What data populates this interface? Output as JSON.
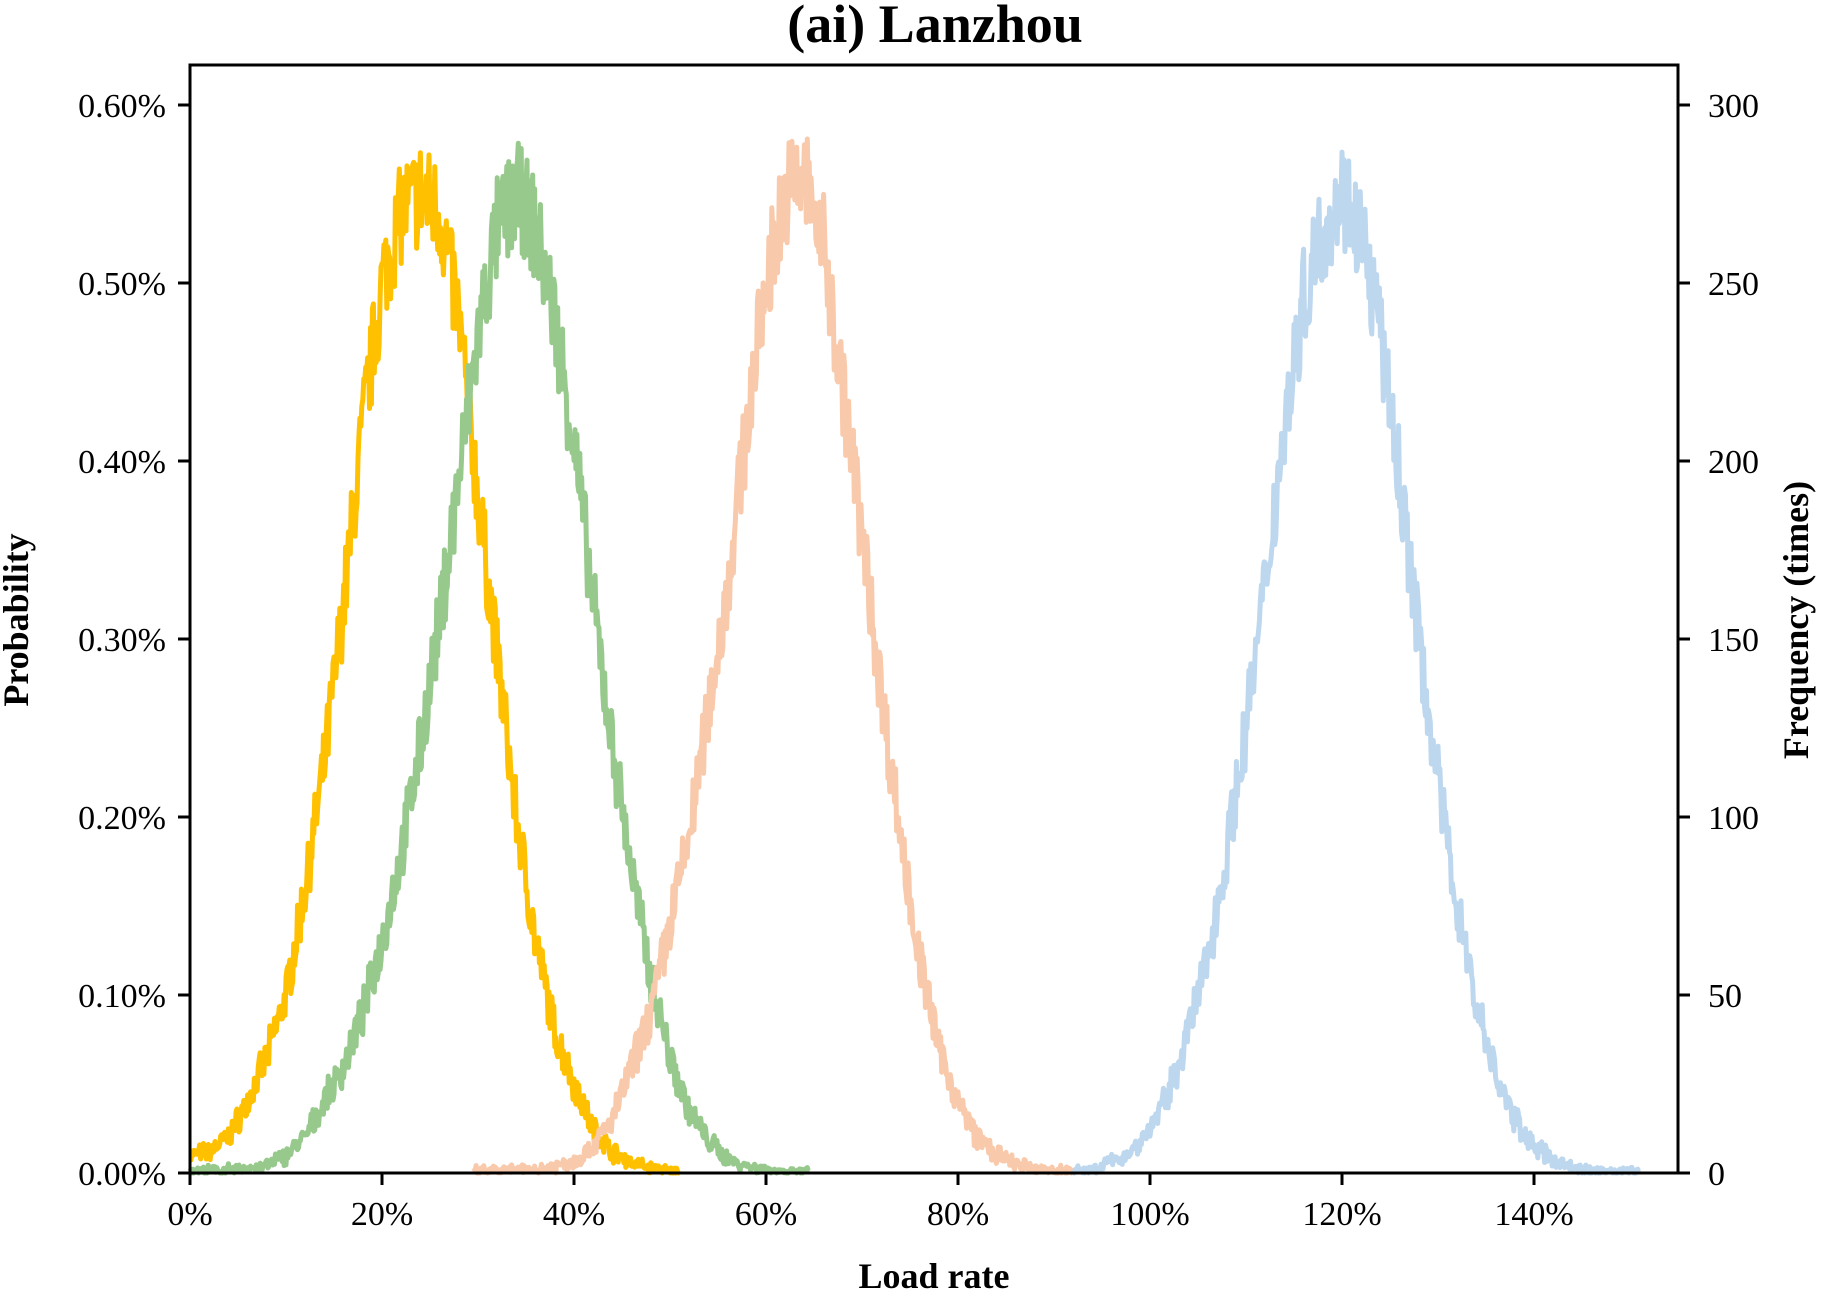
{
  "chart_data": {
    "type": "line",
    "title": "(ai) Lanzhou",
    "xlabel": "Load rate",
    "ylabel": "Probability",
    "ylabel_right": "Frequency (times)",
    "xlim": [
      0,
      155
    ],
    "ylim": [
      0,
      0.6
    ],
    "ylim_right": [
      0,
      300
    ],
    "grid": false,
    "legend": "none",
    "x_ticks": [
      0,
      20,
      40,
      60,
      80,
      100,
      120,
      140
    ],
    "x_tick_labels": [
      "0%",
      "20%",
      "40%",
      "60%",
      "80%",
      "100%",
      "120%",
      "140%"
    ],
    "y_ticks": [
      0,
      0.1,
      0.2,
      0.3,
      0.4,
      0.5,
      0.6
    ],
    "y_tick_labels": [
      "0.00%",
      "0.10%",
      "0.20%",
      "0.30%",
      "0.40%",
      "0.50%",
      "0.60%"
    ],
    "y_right_ticks": [
      0,
      50,
      100,
      150,
      200,
      250,
      300
    ],
    "y_right_tick_labels": [
      "0",
      "50",
      "100",
      "150",
      "200",
      "250",
      "300"
    ],
    "series": [
      {
        "color": "#FFC000",
        "x": [
          0,
          2,
          4,
          6,
          8,
          10,
          12,
          14,
          16,
          18,
          20,
          22,
          24,
          26,
          28,
          30,
          32,
          34,
          36,
          38,
          40,
          42,
          44,
          46,
          48,
          50,
          51
        ],
        "y": [
          0.01,
          0.012,
          0.02,
          0.04,
          0.065,
          0.1,
          0.16,
          0.23,
          0.32,
          0.42,
          0.5,
          0.54,
          0.55,
          0.54,
          0.48,
          0.38,
          0.29,
          0.2,
          0.13,
          0.08,
          0.05,
          0.025,
          0.012,
          0.006,
          0.003,
          0.001,
          0.001
        ]
      },
      {
        "color": "#97C98D",
        "x": [
          0,
          5,
          8,
          10,
          12,
          14,
          16,
          18,
          20,
          22,
          24,
          26,
          28,
          30,
          32,
          34,
          36,
          38,
          40,
          42,
          44,
          46,
          48,
          50,
          52,
          54,
          56,
          58,
          60,
          62,
          64.5
        ],
        "y": [
          0.001,
          0.002,
          0.004,
          0.01,
          0.02,
          0.04,
          0.06,
          0.09,
          0.13,
          0.18,
          0.24,
          0.31,
          0.39,
          0.47,
          0.53,
          0.55,
          0.53,
          0.48,
          0.41,
          0.32,
          0.24,
          0.17,
          0.11,
          0.065,
          0.035,
          0.018,
          0.008,
          0.004,
          0.002,
          0.001,
          0.001
        ]
      },
      {
        "color": "#F8C9AA",
        "x": [
          29.5,
          36,
          40,
          42,
          44,
          46,
          48,
          50,
          52,
          54,
          56,
          58,
          60,
          62,
          64,
          66,
          68,
          70,
          72,
          74,
          76,
          78,
          80,
          82,
          84,
          86,
          88,
          92
        ],
        "y": [
          0.001,
          0.002,
          0.006,
          0.015,
          0.03,
          0.06,
          0.09,
          0.14,
          0.19,
          0.26,
          0.33,
          0.42,
          0.5,
          0.55,
          0.56,
          0.52,
          0.44,
          0.36,
          0.27,
          0.19,
          0.12,
          0.07,
          0.04,
          0.02,
          0.01,
          0.005,
          0.002,
          0.001
        ]
      },
      {
        "color": "#BDD7EE",
        "x": [
          92,
          94,
          96,
          98,
          100,
          102,
          104,
          106,
          108,
          110,
          112,
          114,
          116,
          118,
          120,
          122,
          124,
          126,
          128,
          130,
          132,
          134,
          136,
          138,
          140,
          142,
          144,
          146,
          151
        ],
        "y": [
          0.001,
          0.002,
          0.006,
          0.012,
          0.025,
          0.045,
          0.08,
          0.12,
          0.18,
          0.25,
          0.33,
          0.42,
          0.49,
          0.53,
          0.55,
          0.53,
          0.47,
          0.39,
          0.3,
          0.22,
          0.15,
          0.095,
          0.055,
          0.03,
          0.015,
          0.007,
          0.003,
          0.001,
          0.001
        ]
      }
    ]
  }
}
